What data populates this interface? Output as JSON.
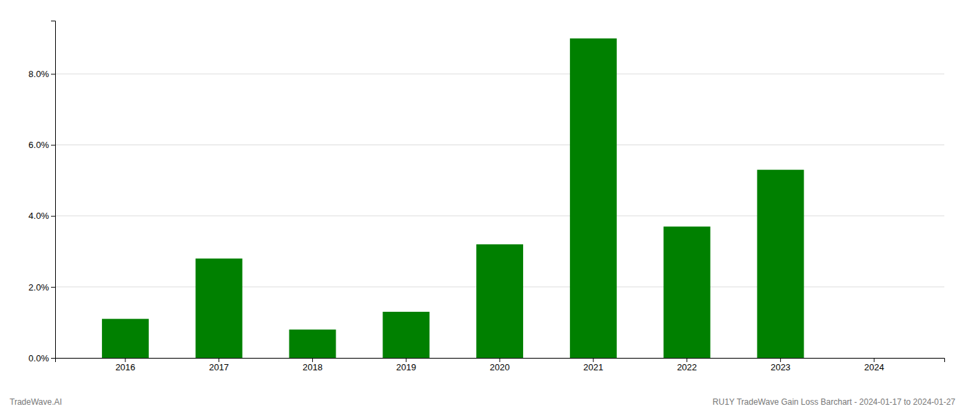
{
  "chart_data": {
    "type": "bar",
    "categories": [
      "2016",
      "2017",
      "2018",
      "2019",
      "2020",
      "2021",
      "2022",
      "2023",
      "2024"
    ],
    "values": [
      0.011,
      0.028,
      0.008,
      0.013,
      0.032,
      0.09,
      0.037,
      0.053,
      0.0
    ],
    "color": "#008000",
    "ylim": [
      0,
      0.095
    ],
    "yticks": [
      {
        "value": 0.0,
        "label": "0.0%"
      },
      {
        "value": 0.02,
        "label": "2.0%"
      },
      {
        "value": 0.04,
        "label": "4.0%"
      },
      {
        "value": 0.06,
        "label": "6.0%"
      },
      {
        "value": 0.08,
        "label": "8.0%"
      }
    ],
    "grid": true,
    "annotations": [
      "TradeWave.AI",
      "RU1Y TradeWave Gain Loss Barchart - 2024-01-17 to 2024-01-27"
    ]
  }
}
